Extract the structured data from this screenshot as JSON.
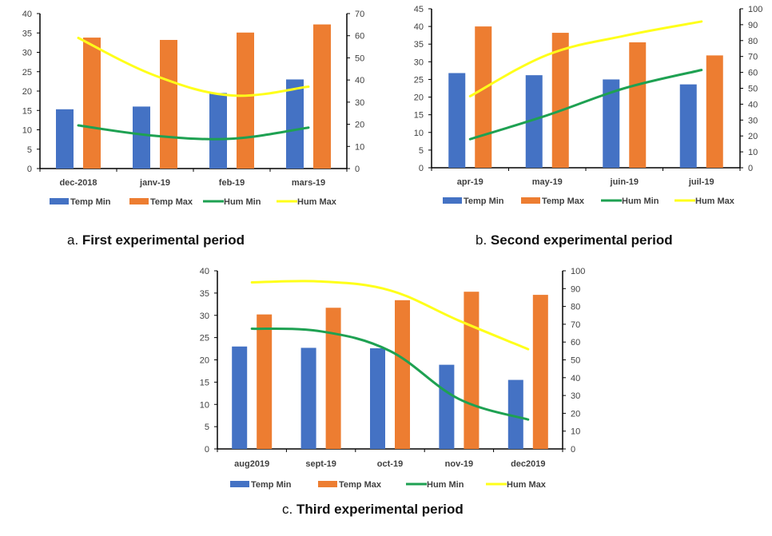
{
  "colors": {
    "temp_min": "#4472C4",
    "temp_max": "#ED7D31",
    "hum_min": "#1EA152",
    "hum_max": "#FFFF1A",
    "axis": "#000000"
  },
  "captions": {
    "a": {
      "prefix": "a.",
      "text": "First experimental period"
    },
    "b": {
      "prefix": "b.",
      "text": "Second experimental period"
    },
    "c": {
      "prefix": "c.",
      "text": "Third experimental period"
    }
  },
  "chart_data": [
    {
      "id": "a",
      "type": "bar+line",
      "title": "a. First experimental period",
      "categories": [
        "dec-2018",
        "janv-19",
        "feb-19",
        "mars-19"
      ],
      "y_left": {
        "min": 0,
        "max": 40,
        "step": 5
      },
      "y_right": {
        "min": 0,
        "max": 70,
        "step": 10
      },
      "series": [
        {
          "name": "Temp Min",
          "kind": "bar",
          "axis": "left",
          "values": [
            15.3,
            16.0,
            19.5,
            23.0
          ]
        },
        {
          "name": "Temp Max",
          "kind": "bar",
          "axis": "left",
          "values": [
            33.8,
            33.2,
            35.1,
            37.2
          ]
        },
        {
          "name": "Hum Min",
          "kind": "line",
          "axis": "right",
          "values": [
            19.5,
            14.8,
            13.5,
            18.5
          ]
        },
        {
          "name": "Hum Max",
          "kind": "line",
          "axis": "right",
          "values": [
            59.0,
            42.0,
            33.0,
            37.0
          ]
        }
      ],
      "legend": "bottom"
    },
    {
      "id": "b",
      "type": "bar+line",
      "title": "b. Second experimental period",
      "categories": [
        "apr-19",
        "may-19",
        "juin-19",
        "juil-19"
      ],
      "y_left": {
        "min": 0,
        "max": 45,
        "step": 5
      },
      "y_right": {
        "min": 0,
        "max": 100,
        "step": 10
      },
      "series": [
        {
          "name": "Temp Min",
          "kind": "bar",
          "axis": "left",
          "values": [
            26.8,
            26.2,
            25.0,
            23.6
          ]
        },
        {
          "name": "Temp Max",
          "kind": "bar",
          "axis": "left",
          "values": [
            40.0,
            38.2,
            35.5,
            31.8
          ]
        },
        {
          "name": "Hum Min",
          "kind": "line",
          "axis": "right",
          "values": [
            18.0,
            33.0,
            50.0,
            61.5
          ]
        },
        {
          "name": "Hum Max",
          "kind": "line",
          "axis": "right",
          "values": [
            45.0,
            71.0,
            83.0,
            92.0
          ]
        }
      ],
      "legend": "bottom"
    },
    {
      "id": "c",
      "type": "bar+line",
      "title": "c. Third experimental period",
      "categories": [
        "aug2019",
        "sept-19",
        "oct-19",
        "nov-19",
        "dec2019"
      ],
      "y_left": {
        "min": 0,
        "max": 40,
        "step": 5
      },
      "y_right": {
        "min": 0,
        "max": 100,
        "step": 10
      },
      "series": [
        {
          "name": "Temp Min",
          "kind": "bar",
          "axis": "left",
          "values": [
            23.0,
            22.7,
            22.6,
            18.9,
            15.5
          ]
        },
        {
          "name": "Temp Max",
          "kind": "bar",
          "axis": "left",
          "values": [
            30.2,
            31.7,
            33.4,
            35.3,
            34.6
          ]
        },
        {
          "name": "Hum Min",
          "kind": "line",
          "axis": "right",
          "values": [
            67.5,
            66.0,
            55.0,
            28.0,
            16.5
          ]
        },
        {
          "name": "Hum Max",
          "kind": "line",
          "axis": "right",
          "values": [
            93.5,
            94.0,
            89.0,
            72.0,
            56.0
          ]
        }
      ],
      "legend": "bottom"
    }
  ]
}
